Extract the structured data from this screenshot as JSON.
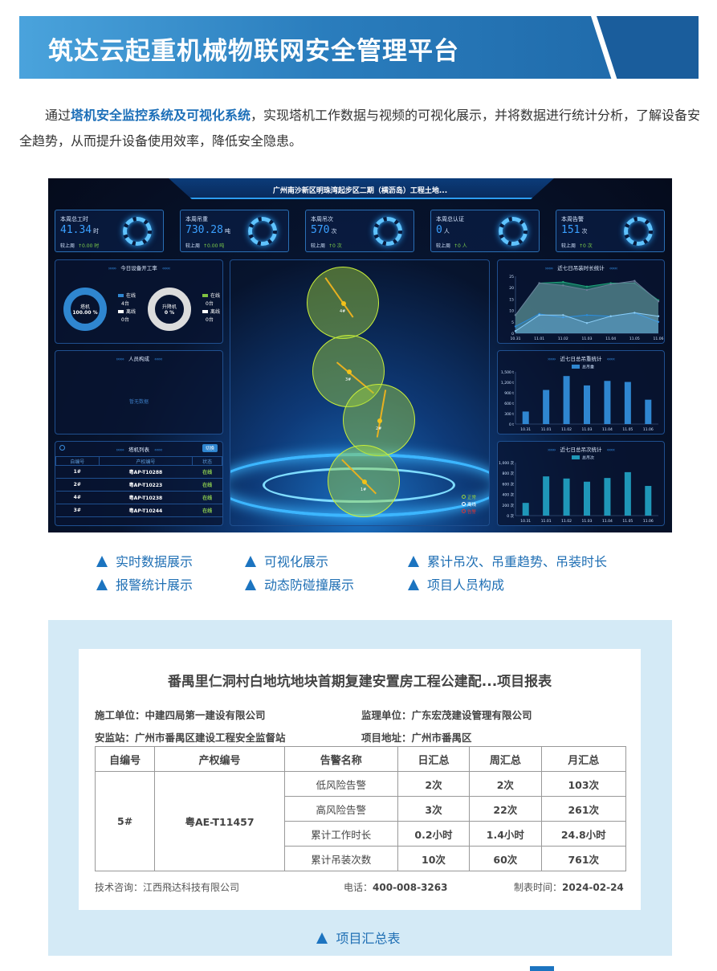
{
  "header": {
    "title": "筑达云起重机械物联网安全管理平台"
  },
  "intro": {
    "prefix": "通过",
    "highlight": "塔机安全监控系统及可视化系统",
    "suffix": "，实现塔机工作数据与视频的可视化展示，并将数据进行统计分析，了解设备安全趋势，从而提升设备使用效率，降低安全隐患。"
  },
  "dashboard": {
    "title": "广州南沙新区明珠湾起步区二期（横沥岛）工程土地...",
    "kpis": [
      {
        "label": "本周总工时",
        "value": "41.34",
        "unit": "时",
        "compare_label": "较上周",
        "compare": "↑0.00 时"
      },
      {
        "label": "本周吊重",
        "value": "730.28",
        "unit": "吨",
        "compare_label": "较上周",
        "compare": "↑0.00 吨"
      },
      {
        "label": "本周吊次",
        "value": "570",
        "unit": "次",
        "compare_label": "较上周",
        "compare": "↑0 次"
      },
      {
        "label": "本周总认证",
        "value": "0",
        "unit": "人",
        "compare_label": "较上周",
        "compare": "↑0 人"
      },
      {
        "label": "本周告警",
        "value": "151",
        "unit": "次",
        "compare_label": "较上周",
        "compare": "↑0 次"
      }
    ],
    "chevrons_left": "››››››",
    "chevrons_right": "‹‹‹‹‹‹",
    "utilization": {
      "title": "今日设备开工率",
      "tower": {
        "name": "塔机",
        "percent": "100.00 %",
        "online_label": "在线",
        "online": "4台",
        "offline_label": "离线",
        "offline": "0台"
      },
      "hoist": {
        "name": "升降机",
        "percent": "0 %",
        "online_label": "在线",
        "online": "0台",
        "offline_label": "离线",
        "offline": "0台"
      },
      "colors": {
        "tower": "#2f86d0",
        "hoist": "#dcdcdc",
        "online_hoist": "#7fc241"
      }
    },
    "personnel": {
      "title": "人员构成",
      "empty": "暂无数据"
    },
    "tower_list": {
      "title": "塔机列表",
      "switch": "切换",
      "columns": [
        "自编号",
        "产权编号",
        "状态"
      ],
      "rows": [
        [
          "1#",
          "粤AP-T10288",
          "在线"
        ],
        [
          "2#",
          "粤AP-T10223",
          "在线"
        ],
        [
          "4#",
          "粤AP-T10238",
          "在线"
        ],
        [
          "3#",
          "粤AP-T10244",
          "在线"
        ]
      ]
    },
    "map": {
      "towers": [
        "4#",
        "3#",
        "2#",
        "1#"
      ],
      "legend": [
        {
          "label": "正常",
          "color": "#9bd13a"
        },
        {
          "label": "离线",
          "color": "#ffffff"
        },
        {
          "label": "告警",
          "color": "#e03030"
        }
      ]
    }
  },
  "chart_data": [
    {
      "type": "area",
      "title": "近七日吊装时长统计",
      "categories": [
        "10.31",
        "11.01",
        "11.02",
        "11.03",
        "11.04",
        "11.05",
        "11.06"
      ],
      "ylim": [
        0,
        25
      ],
      "yticks": [
        "0",
        "5",
        "10",
        "15",
        "20",
        "25"
      ],
      "series": [
        {
          "values": [
            8,
            22,
            22.5,
            20.5,
            22,
            22,
            14.5
          ],
          "color": "#1fa37a"
        },
        {
          "values": [
            8,
            22,
            21,
            19,
            21.5,
            23,
            14
          ],
          "color": "#6b7c99"
        },
        {
          "values": [
            3,
            8.5,
            7,
            8,
            7.5,
            9,
            5
          ],
          "color": "#2a8ee0"
        },
        {
          "values": [
            1,
            8,
            8,
            4.5,
            7.5,
            9,
            7.5
          ],
          "color": "#8ccdf5"
        }
      ]
    },
    {
      "type": "bar",
      "title": "近七日总吊重统计",
      "legend": "总吊重",
      "categories": [
        "10.31",
        "11.01",
        "11.02",
        "11.03",
        "11.04",
        "11.05",
        "11.06"
      ],
      "values": [
        360,
        980,
        1380,
        1110,
        1240,
        1210,
        700
      ],
      "ylim": [
        0,
        1500
      ],
      "yticks": [
        "0 t",
        "300 t",
        "600 t",
        "900 t",
        "1,200 t",
        "1,500 t"
      ],
      "color": "#2f86d0"
    },
    {
      "type": "bar",
      "title": "近七日总吊次统计",
      "legend": "总吊次",
      "categories": [
        "10.31",
        "11.01",
        "11.02",
        "11.03",
        "11.04",
        "11.05",
        "11.06"
      ],
      "values": [
        240,
        740,
        700,
        640,
        710,
        820,
        560
      ],
      "ylim": [
        0,
        1000
      ],
      "yticks": [
        "0 次",
        "200 次",
        "400 次",
        "600 次",
        "800 次",
        "1,000 次"
      ],
      "color": "#1f97b8"
    }
  ],
  "features": [
    "实时数据展示",
    "可视化展示",
    "累计吊次、吊重趋势、吊装时长",
    "报警统计展示",
    "动态防碰撞展示",
    "项目人员构成"
  ],
  "report": {
    "title": "番禺里仁洞村白地坑地块首期复建安置房工程公建配...项目报表",
    "meta": [
      "施工单位：中建四局第一建设有限公司",
      "监理单位：广东宏茂建设管理有限公司",
      "安监站：广州市番禺区建设工程安全监督站",
      "项目地址：广州市番禺区"
    ],
    "columns": [
      "自编号",
      "产权编号",
      "告警名称",
      "日汇总",
      "周汇总",
      "月汇总"
    ],
    "id": "5#",
    "reg": "粤AE-T11457",
    "rows": [
      [
        "低风险告警",
        "2次",
        "2次",
        "103次"
      ],
      [
        "高风险告警",
        "3次",
        "22次",
        "261次"
      ],
      [
        "累计工作时长",
        "0.2小时",
        "1.4小时",
        "24.8小时"
      ],
      [
        "累计吊装次数",
        "10次",
        "60次",
        "761次"
      ]
    ],
    "footer": {
      "consult_label": "技术咨询：",
      "consult": "江西飛达科技有限公司",
      "phone_label": "电话：",
      "phone": "400-008-3263",
      "date_label": "制表时间：",
      "date": "2024-02-24"
    }
  },
  "caption": "项目汇总表",
  "colors": {
    "brand": "#1f6fb4",
    "accent": "#3aa0ff",
    "report_bg": "#d4eaf6"
  }
}
